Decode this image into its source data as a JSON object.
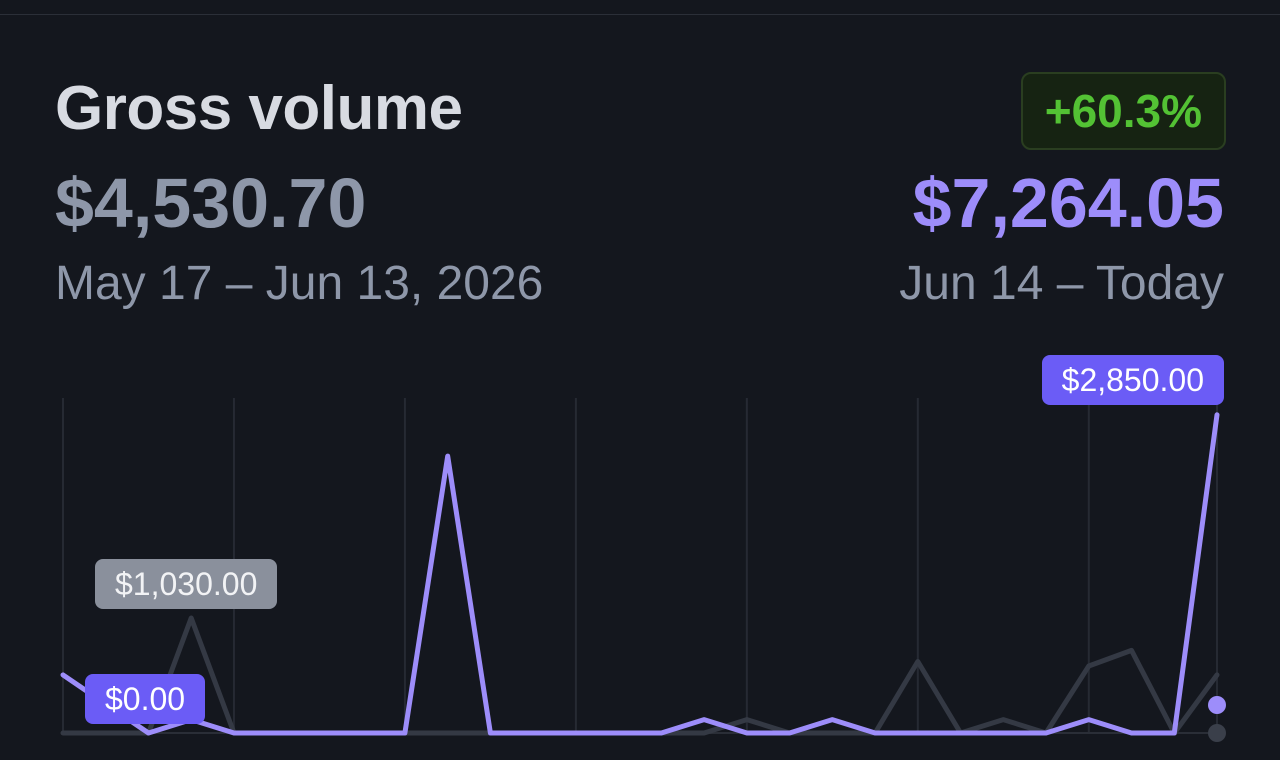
{
  "card": {
    "title": "Gross volume",
    "change_badge": "+60.3%",
    "previous_total": "$4,530.70",
    "current_total": "$7,264.05",
    "previous_range": "May 17 – Jun 13, 2026",
    "current_range": "Jun 14 – Today"
  },
  "colors": {
    "background": "#14171e",
    "current_series": "#9d8dfa",
    "previous_series": "#343944",
    "badge_positive": "#53c234",
    "pill_current": "#6b5cf6",
    "pill_previous": "#8a909c"
  },
  "chart_data": {
    "type": "line",
    "x": [
      0,
      1,
      2,
      3,
      4,
      5,
      6,
      7,
      8,
      9,
      10,
      11,
      12,
      13,
      14,
      15,
      16,
      17,
      18,
      19,
      20,
      21,
      22,
      23,
      24,
      25,
      26,
      27
    ],
    "series": [
      {
        "values": [
          520,
          260,
          0,
          120,
          0,
          0,
          0,
          0,
          0,
          2480,
          0,
          0,
          0,
          0,
          0,
          120,
          0,
          0,
          120,
          0,
          0,
          0,
          0,
          0,
          120,
          0,
          0,
          2850
        ]
      },
      {
        "values": [
          0,
          0,
          0,
          1030,
          0,
          0,
          0,
          0,
          0,
          0,
          0,
          0,
          0,
          0,
          0,
          0,
          120,
          0,
          0,
          0,
          640,
          0,
          120,
          0,
          600,
          740,
          0,
          520
        ]
      }
    ],
    "xlim": [
      0,
      27
    ],
    "ylim": [
      0,
      3000
    ],
    "grid": true,
    "annotations": {
      "current_peak": "$2,850.00",
      "previous_peak": "$1,030.00",
      "current_start": "$0.00"
    }
  }
}
